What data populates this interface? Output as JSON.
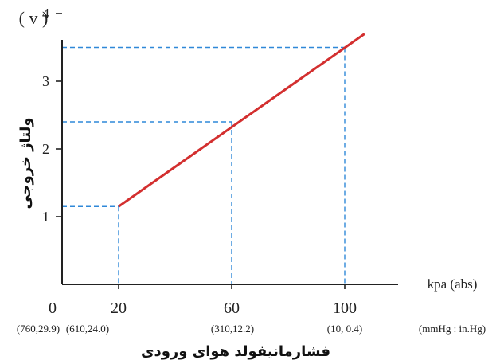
{
  "chart_data": {
    "type": "line",
    "y_unit_label": "( v )",
    "ylabel": "ولتاژ خروجی",
    "x_unit_label": "kpa (abs)",
    "xlabel": "فشارمانیفولد هوای ورودی",
    "secondary_unit_label": "(mmHg : in.Hg)",
    "xlim": [
      0,
      112
    ],
    "ylim": [
      0,
      4.3
    ],
    "x_ticks": [
      "0",
      "20",
      "60",
      "100"
    ],
    "y_ticks": [
      "1",
      "2",
      "3",
      "4"
    ],
    "secondary_ticks": [
      "(760,29.9)",
      "(610,24.0)",
      "(310,12.2)",
      "(10,  0.4)"
    ],
    "series": [
      {
        "color": "#d32f2f",
        "x": [
          20,
          107
        ],
        "y": [
          1.15,
          3.7
        ]
      }
    ],
    "reference_points": [
      {
        "x": 20,
        "y": 1.15
      },
      {
        "x": 60,
        "y": 2.4
      },
      {
        "x": 100,
        "y": 3.5
      }
    ],
    "reference_line_color": "#2f88d8"
  }
}
